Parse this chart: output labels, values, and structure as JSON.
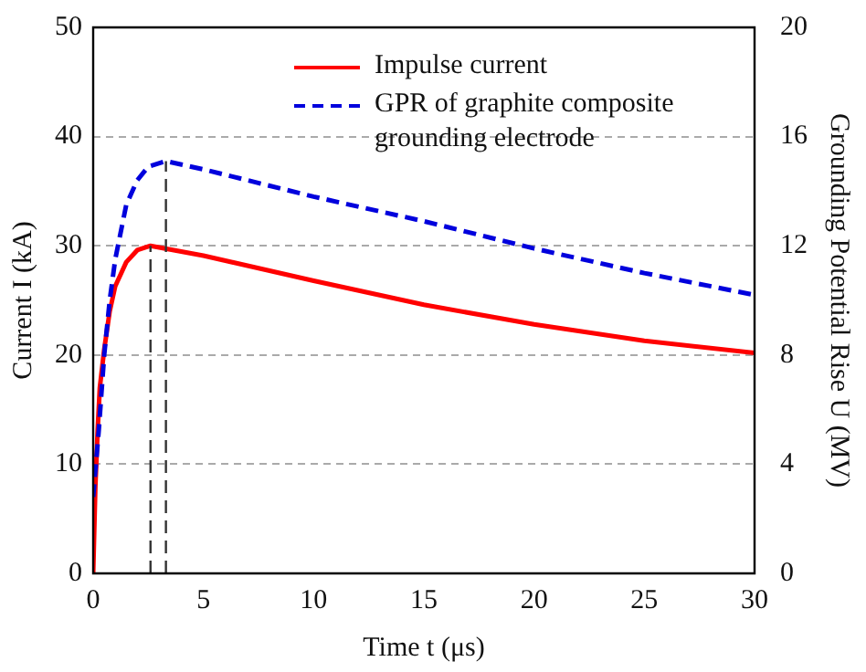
{
  "chart_data": {
    "type": "line",
    "xlabel": "Time t (μs)",
    "ylabel": "Current I (kA)",
    "y2label": "Grounding Potential Rise U (MV)",
    "xlim": [
      0,
      30
    ],
    "xticks": [
      0,
      5,
      10,
      15,
      20,
      25,
      30
    ],
    "ylim": [
      0,
      50
    ],
    "yticks": [
      0,
      10,
      20,
      30,
      40,
      50
    ],
    "y2lim": [
      0,
      20
    ],
    "y2ticks": [
      0,
      4,
      8,
      12,
      16,
      20
    ],
    "grid": "y",
    "legend": "top right",
    "marker": "none",
    "series": [
      {
        "name": "Impulse current",
        "color": "#ff0000",
        "line_style": "solid",
        "x": [
          0,
          0.1,
          0.2,
          0.3,
          0.5,
          0.75,
          1,
          1.5,
          2,
          2.6,
          5,
          10,
          15,
          20,
          25,
          30
        ],
        "values": [
          0,
          8,
          13,
          17,
          20.5,
          24,
          26.3,
          28.5,
          29.6,
          30,
          29.1,
          26.8,
          24.6,
          22.8,
          21.3,
          20.2
        ]
      },
      {
        "name": "GPR of graphite composite grounding electrode",
        "color": "#0000dd",
        "line_style": "dashed",
        "axis": "y2",
        "x": [
          0,
          0.25,
          0.5,
          0.75,
          1,
          1.5,
          2,
          2.5,
          3.3,
          5,
          10,
          15,
          20,
          25,
          30
        ],
        "values": [
          2.8,
          5.2,
          8,
          10,
          11.5,
          13.5,
          14.4,
          14.9,
          15.1,
          14.8,
          13.8,
          12.9,
          11.9,
          11,
          10.2
        ]
      }
    ],
    "ref_lines": [
      {
        "axis": "x",
        "value": 2.6,
        "color": "#333333",
        "line_style": "dashed"
      },
      {
        "axis": "x",
        "value": 3.3,
        "color": "#333333",
        "line_style": "dashed"
      }
    ]
  }
}
